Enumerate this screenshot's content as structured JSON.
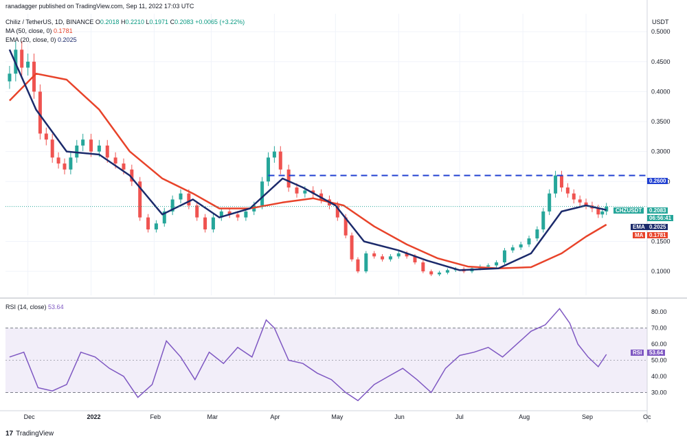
{
  "header": {
    "publisher_line": "ranadagger published on TradingView.com, Sep 11, 2022 17:03 UTC",
    "symbol_line": "Chiliz / TetherUS, 1D, BINANCE",
    "ohlc": {
      "o_label": "O",
      "o": "0.2018",
      "h_label": "H",
      "h": "0.2210",
      "l_label": "L",
      "l": "0.1971",
      "c_label": "C",
      "c": "0.2083",
      "change": "+0.0065 (+3.22%)"
    },
    "ma_label": "MA (50, close, 0)",
    "ma_value": "0.1781",
    "ema_label": "EMA (20, close, 0)",
    "ema_value": "0.2025"
  },
  "currency": "USDT",
  "rsi_header": {
    "label": "RSI (14, close)",
    "value": "53.64"
  },
  "footer": {
    "brand": "TradingView",
    "logo": "17"
  },
  "colors": {
    "up": "#26a69a",
    "down": "#ef5350",
    "ma": "#e8432a",
    "ema": "#1b2a6b",
    "rsi": "#7e57c2",
    "resistance": "#1f3fd1",
    "price_tag": "#26a69a"
  },
  "tags": {
    "resistance": "0.2600",
    "symbol": "CHZUSDT",
    "price": "0.2083",
    "countdown": "06:56:41",
    "ema_label": "EMA",
    "ema": "0.2025",
    "ma_label": "MA",
    "ma": "0.1781",
    "rsi_label": "RSI",
    "rsi": "53.64"
  },
  "chart_data": [
    {
      "type": "candlestick",
      "title": "Chiliz / TetherUS, 1D, BINANCE",
      "x_tick_labels": [
        "Dec",
        "2022",
        "Feb",
        "Mar",
        "Apr",
        "May",
        "Jun",
        "Jul",
        "Aug",
        "Sep",
        "Oc"
      ],
      "y_tick_labels": [
        "0.5000",
        "0.4500",
        "0.4000",
        "0.3500",
        "0.3000",
        "0.2500",
        "0.1500",
        "0.1000"
      ],
      "ylim": [
        0.06,
        0.53
      ],
      "resistance_level": 0.26,
      "series": [
        {
          "name": "CHZUSDT close (approx.)",
          "x": [
            "2021-11-22",
            "2021-11-25",
            "2021-11-28",
            "2021-12-01",
            "2021-12-04",
            "2021-12-07",
            "2021-12-10",
            "2021-12-13",
            "2021-12-16",
            "2021-12-19",
            "2021-12-22",
            "2021-12-25",
            "2021-12-28",
            "2022-01-01",
            "2022-01-05",
            "2022-01-09",
            "2022-01-13",
            "2022-01-17",
            "2022-01-21",
            "2022-01-25",
            "2022-01-29",
            "2022-02-02",
            "2022-02-06",
            "2022-02-10",
            "2022-02-14",
            "2022-02-18",
            "2022-02-22",
            "2022-02-26",
            "2022-03-02",
            "2022-03-06",
            "2022-03-10",
            "2022-03-14",
            "2022-03-18",
            "2022-03-22",
            "2022-03-26",
            "2022-03-29",
            "2022-04-01",
            "2022-04-04",
            "2022-04-08",
            "2022-04-12",
            "2022-04-16",
            "2022-04-20",
            "2022-04-24",
            "2022-04-28",
            "2022-05-02",
            "2022-05-06",
            "2022-05-09",
            "2022-05-12",
            "2022-05-16",
            "2022-05-20",
            "2022-05-24",
            "2022-05-28",
            "2022-06-01",
            "2022-06-05",
            "2022-06-09",
            "2022-06-13",
            "2022-06-17",
            "2022-06-21",
            "2022-06-25",
            "2022-06-29",
            "2022-07-03",
            "2022-07-07",
            "2022-07-11",
            "2022-07-15",
            "2022-07-19",
            "2022-07-23",
            "2022-07-27",
            "2022-07-31",
            "2022-08-04",
            "2022-08-08",
            "2022-08-11",
            "2022-08-14",
            "2022-08-17",
            "2022-08-20",
            "2022-08-23",
            "2022-08-26",
            "2022-08-29",
            "2022-09-01",
            "2022-09-04",
            "2022-09-07",
            "2022-09-09",
            "2022-09-11"
          ],
          "values": [
            0.43,
            0.47,
            0.44,
            0.45,
            0.4,
            0.33,
            0.32,
            0.29,
            0.28,
            0.27,
            0.29,
            0.31,
            0.32,
            0.3,
            0.31,
            0.29,
            0.28,
            0.27,
            0.25,
            0.19,
            0.17,
            0.18,
            0.2,
            0.22,
            0.23,
            0.21,
            0.19,
            0.17,
            0.19,
            0.2,
            0.195,
            0.19,
            0.2,
            0.21,
            0.25,
            0.29,
            0.3,
            0.27,
            0.24,
            0.23,
            0.235,
            0.23,
            0.22,
            0.21,
            0.19,
            0.16,
            0.12,
            0.1,
            0.13,
            0.125,
            0.12,
            0.125,
            0.13,
            0.125,
            0.115,
            0.1,
            0.095,
            0.098,
            0.102,
            0.104,
            0.1,
            0.105,
            0.108,
            0.11,
            0.115,
            0.135,
            0.14,
            0.145,
            0.155,
            0.17,
            0.2,
            0.23,
            0.26,
            0.24,
            0.23,
            0.22,
            0.215,
            0.21,
            0.205,
            0.195,
            0.2,
            0.208
          ]
        },
        {
          "name": "MA (50, close, 0)",
          "x": [
            "2021-11-22",
            "2021-12-05",
            "2021-12-20",
            "2022-01-05",
            "2022-01-20",
            "2022-02-05",
            "2022-02-20",
            "2022-03-05",
            "2022-03-20",
            "2022-04-05",
            "2022-04-20",
            "2022-05-05",
            "2022-05-20",
            "2022-06-05",
            "2022-06-20",
            "2022-07-05",
            "2022-07-20",
            "2022-08-05",
            "2022-08-20",
            "2022-09-01",
            "2022-09-11"
          ],
          "values": [
            0.385,
            0.43,
            0.42,
            0.37,
            0.3,
            0.255,
            0.23,
            0.205,
            0.205,
            0.215,
            0.222,
            0.21,
            0.175,
            0.145,
            0.122,
            0.108,
            0.105,
            0.107,
            0.13,
            0.158,
            0.1781
          ]
        },
        {
          "name": "EMA (20, close, 0)",
          "x": [
            "2021-11-22",
            "2021-12-05",
            "2021-12-20",
            "2022-01-05",
            "2022-01-20",
            "2022-02-05",
            "2022-02-20",
            "2022-03-05",
            "2022-03-20",
            "2022-04-05",
            "2022-04-15",
            "2022-05-01",
            "2022-05-15",
            "2022-06-01",
            "2022-06-15",
            "2022-07-01",
            "2022-07-20",
            "2022-08-05",
            "2022-08-20",
            "2022-09-01",
            "2022-09-11"
          ],
          "values": [
            0.47,
            0.37,
            0.3,
            0.295,
            0.26,
            0.195,
            0.22,
            0.19,
            0.205,
            0.255,
            0.24,
            0.21,
            0.15,
            0.135,
            0.118,
            0.102,
            0.105,
            0.13,
            0.2,
            0.21,
            0.2025
          ]
        }
      ]
    },
    {
      "type": "line",
      "title": "RSI (14, close)",
      "y_tick_labels": [
        "80.00",
        "70.00",
        "60.00",
        "50.00",
        "40.00",
        "30.00"
      ],
      "ylim": [
        20,
        86
      ],
      "band": [
        30,
        70
      ],
      "midline": 50,
      "series": [
        {
          "name": "RSI (14, close)",
          "x": [
            "2021-11-22",
            "2021-11-29",
            "2021-12-06",
            "2021-12-13",
            "2021-12-20",
            "2021-12-27",
            "2022-01-03",
            "2022-01-10",
            "2022-01-17",
            "2022-01-24",
            "2022-01-31",
            "2022-02-07",
            "2022-02-14",
            "2022-02-21",
            "2022-02-28",
            "2022-03-07",
            "2022-03-14",
            "2022-03-21",
            "2022-03-28",
            "2022-04-01",
            "2022-04-08",
            "2022-04-15",
            "2022-04-22",
            "2022-04-29",
            "2022-05-06",
            "2022-05-12",
            "2022-05-20",
            "2022-05-27",
            "2022-06-03",
            "2022-06-10",
            "2022-06-17",
            "2022-06-24",
            "2022-07-01",
            "2022-07-08",
            "2022-07-15",
            "2022-07-22",
            "2022-07-29",
            "2022-08-05",
            "2022-08-12",
            "2022-08-19",
            "2022-08-24",
            "2022-08-28",
            "2022-09-02",
            "2022-09-07",
            "2022-09-11"
          ],
          "values": [
            52,
            55,
            33,
            31,
            35,
            55,
            52,
            45,
            40,
            27,
            35,
            62,
            52,
            38,
            55,
            48,
            58,
            52,
            75,
            70,
            50,
            48,
            42,
            38,
            30,
            25,
            35,
            40,
            45,
            38,
            30,
            45,
            53,
            55,
            58,
            52,
            60,
            68,
            72,
            82,
            73,
            60,
            52,
            46,
            53.64
          ]
        }
      ]
    }
  ]
}
